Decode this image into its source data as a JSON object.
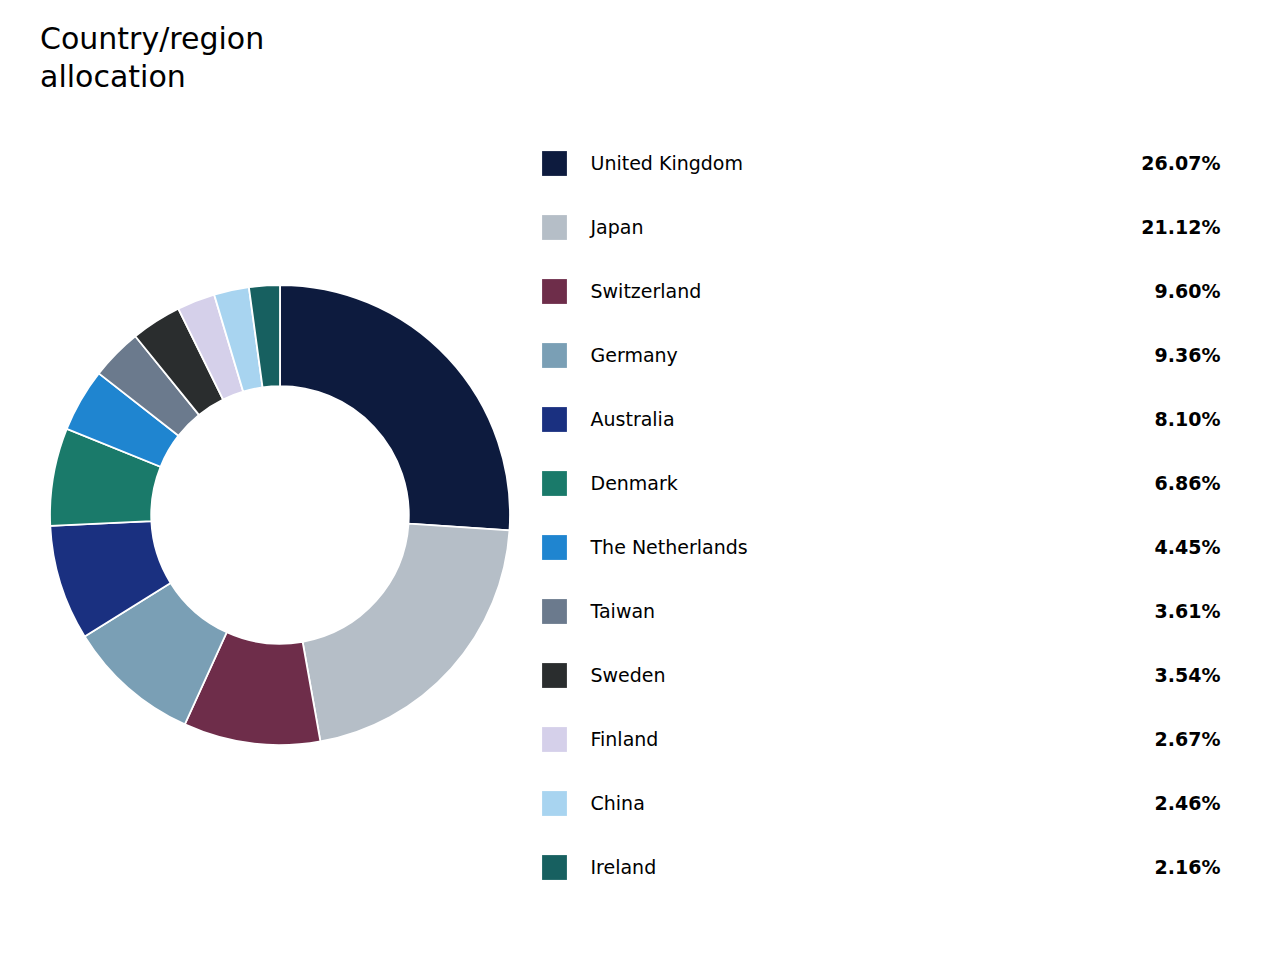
{
  "chart_data": {
    "type": "pie",
    "title": "Country/region\nallocation",
    "categories": [
      "United Kingdom",
      "Japan",
      "Switzerland",
      "Germany",
      "Australia",
      "Denmark",
      "The Netherlands",
      "Taiwan",
      "Sweden",
      "Finland",
      "China",
      "Ireland"
    ],
    "values": [
      26.07,
      21.12,
      9.6,
      9.36,
      8.1,
      6.86,
      4.45,
      3.61,
      3.54,
      2.67,
      2.46,
      2.16
    ],
    "value_labels": [
      "26.07%",
      "21.12%",
      "9.60%",
      "9.36%",
      "8.10%",
      "6.86%",
      "4.45%",
      "3.61%",
      "3.54%",
      "2.67%",
      "2.46%",
      "2.16%"
    ],
    "colors": [
      "#0d1b3e",
      "#b5bec7",
      "#6e2d4a",
      "#7a9fb5",
      "#1a3080",
      "#1a7a6a",
      "#1f85d0",
      "#6b7a8d",
      "#2a2d2e",
      "#d5d0ea",
      "#a8d4f0",
      "#176060"
    ],
    "legend": "right"
  }
}
